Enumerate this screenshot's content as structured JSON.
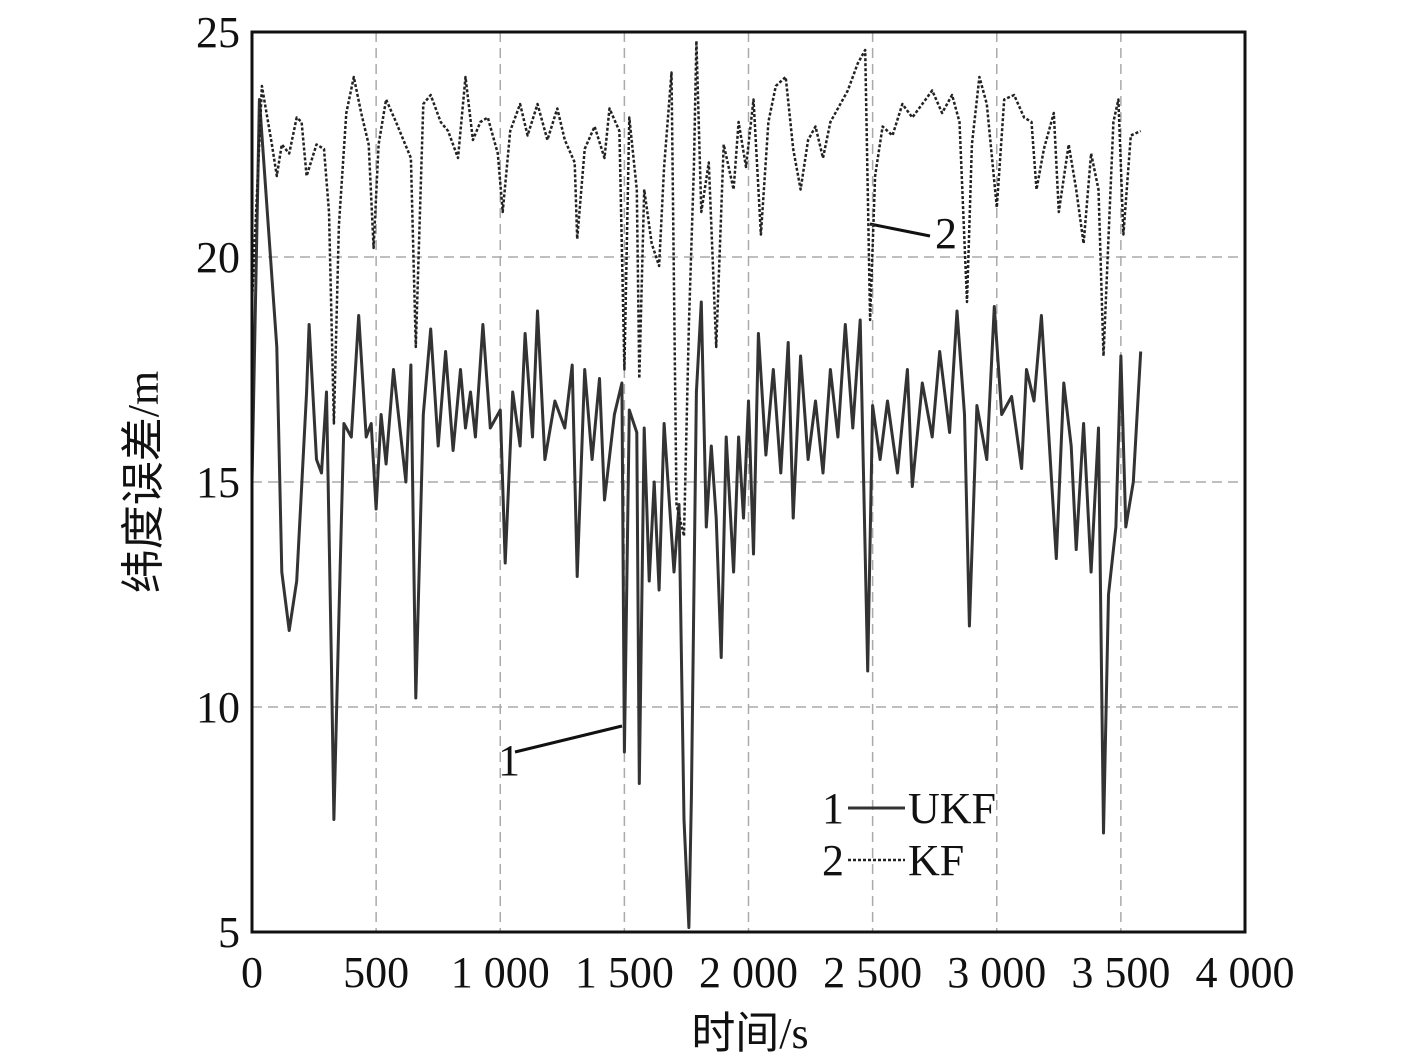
{
  "chart_data": {
    "type": "line",
    "xlabel": "时间/s",
    "ylabel": "纬度误差/m",
    "xlim": [
      0,
      4000
    ],
    "ylim": [
      5,
      25
    ],
    "xticks": [
      0,
      500,
      {
        "value": 1000,
        "label": "1 000"
      },
      {
        "value": 1500,
        "label": "1 500"
      },
      {
        "value": 2000,
        "label": "2 000"
      },
      {
        "value": 2500,
        "label": "2 500"
      },
      {
        "value": 3000,
        "label": "3 000"
      },
      {
        "value": 3500,
        "label": "3 500"
      },
      {
        "value": 4000,
        "label": "4 000"
      }
    ],
    "yticks": [
      5,
      10,
      15,
      20,
      25
    ],
    "grid": true,
    "legend_keys": [
      "1",
      "2"
    ],
    "annotations": [
      "1",
      "2"
    ],
    "series": [
      {
        "name": "UKF",
        "color": "#333333",
        "dash": false,
        "x": [
          0,
          30,
          100,
          120,
          150,
          180,
          220,
          230,
          260,
          280,
          300,
          320,
          330,
          350,
          370,
          400,
          430,
          460,
          480,
          500,
          520,
          540,
          570,
          600,
          620,
          640,
          660,
          690,
          720,
          750,
          780,
          810,
          840,
          860,
          880,
          900,
          930,
          960,
          1000,
          1020,
          1050,
          1080,
          1100,
          1130,
          1150,
          1180,
          1220,
          1260,
          1290,
          1310,
          1340,
          1370,
          1400,
          1420,
          1460,
          1490,
          1500,
          1520,
          1550,
          1560,
          1580,
          1600,
          1620,
          1640,
          1660,
          1700,
          1720,
          1740,
          1760,
          1770,
          1790,
          1810,
          1830,
          1850,
          1870,
          1890,
          1910,
          1940,
          1960,
          1980,
          2000,
          2020,
          2040,
          2070,
          2100,
          2130,
          2160,
          2180,
          2210,
          2240,
          2270,
          2300,
          2330,
          2360,
          2390,
          2420,
          2450,
          2480,
          2500,
          2530,
          2560,
          2600,
          2640,
          2660,
          2700,
          2740,
          2770,
          2810,
          2840,
          2870,
          2890,
          2920,
          2960,
          2990,
          3020,
          3060,
          3100,
          3120,
          3150,
          3180,
          3210,
          3240,
          3270,
          3300,
          3320,
          3350,
          3380,
          3410,
          3430,
          3450,
          3480,
          3500,
          3520,
          3550,
          3580
        ],
        "values": [
          15,
          23.5,
          18,
          13,
          11.7,
          12.8,
          17,
          18.5,
          15.5,
          15.2,
          17,
          11,
          7.5,
          12,
          16.3,
          16,
          18.7,
          16,
          16.3,
          14.4,
          16.5,
          15.4,
          17.5,
          16,
          15,
          17.6,
          10.2,
          16.5,
          18.4,
          15.8,
          17.9,
          15.7,
          17.5,
          16.2,
          17,
          16,
          18.5,
          16.2,
          16.6,
          13.2,
          17,
          15.8,
          18.3,
          16,
          18.8,
          15.5,
          16.8,
          16.2,
          17.6,
          12.9,
          17.5,
          15.5,
          17.3,
          14.6,
          16.5,
          17.2,
          9,
          16.6,
          16.1,
          8.3,
          16.2,
          12.8,
          15,
          12.6,
          16.3,
          13,
          14.5,
          7.5,
          5.1,
          8,
          17,
          19,
          14,
          15.8,
          14.2,
          11.1,
          16,
          13,
          16,
          14.2,
          16.8,
          13.4,
          18.3,
          15.6,
          17.5,
          15.2,
          18.1,
          14.2,
          17.8,
          15.5,
          16.8,
          15.2,
          17.5,
          16,
          18.5,
          16.2,
          18.6,
          10.8,
          16.7,
          15.5,
          16.8,
          15.2,
          17.5,
          14.9,
          17.2,
          16,
          17.9,
          16.1,
          18.8,
          16.5,
          11.8,
          16.7,
          15.5,
          18.9,
          16.5,
          16.9,
          15.3,
          17.5,
          16.8,
          18.7,
          16,
          13.3,
          17.2,
          15.8,
          13.5,
          16.3,
          13,
          16.2,
          7.2,
          12.5,
          14,
          17.8,
          14,
          15,
          17.9
        ]
      },
      {
        "name": "KF",
        "color": "#222222",
        "dash": true,
        "x": [
          0,
          40,
          80,
          100,
          120,
          150,
          180,
          200,
          220,
          260,
          290,
          310,
          330,
          350,
          380,
          410,
          440,
          470,
          490,
          510,
          540,
          580,
          610,
          640,
          660,
          690,
          720,
          760,
          790,
          830,
          860,
          890,
          920,
          950,
          990,
          1010,
          1040,
          1080,
          1110,
          1150,
          1190,
          1230,
          1260,
          1300,
          1310,
          1340,
          1380,
          1420,
          1440,
          1480,
          1500,
          1520,
          1550,
          1560,
          1580,
          1610,
          1640,
          1660,
          1690,
          1710,
          1740,
          1760,
          1780,
          1790,
          1810,
          1840,
          1870,
          1900,
          1940,
          1960,
          1990,
          2020,
          2050,
          2080,
          2110,
          2150,
          2180,
          2210,
          2240,
          2270,
          2300,
          2330,
          2360,
          2400,
          2440,
          2470,
          2490,
          2510,
          2540,
          2580,
          2620,
          2660,
          2700,
          2740,
          2780,
          2820,
          2850,
          2880,
          2900,
          2930,
          2960,
          3000,
          3030,
          3070,
          3110,
          3140,
          3160,
          3190,
          3230,
          3250,
          3290,
          3320,
          3350,
          3380,
          3410,
          3430,
          3470,
          3490,
          3510,
          3540,
          3580
        ],
        "values": [
          19,
          23.8,
          22.5,
          21.8,
          22.5,
          22.3,
          23.1,
          23,
          21.8,
          22.5,
          22.4,
          21,
          16.3,
          20.7,
          23.2,
          24,
          23.2,
          22.5,
          20.2,
          22.5,
          23.5,
          23,
          22.6,
          22.2,
          18,
          23.4,
          23.6,
          23,
          22.8,
          22.2,
          24,
          22.6,
          23,
          23.1,
          22.3,
          21,
          22.8,
          23.4,
          22.7,
          23.4,
          22.6,
          23.3,
          22.6,
          22.1,
          20.4,
          22.4,
          22.9,
          22.2,
          23.3,
          22.8,
          17.5,
          23.1,
          21.5,
          17.3,
          21.5,
          20.3,
          19.8,
          22,
          24.1,
          14.5,
          13.8,
          18.5,
          22,
          24.8,
          21,
          22.1,
          18,
          22.5,
          21.5,
          23,
          22,
          23.5,
          20.5,
          23,
          23.8,
          24,
          22.4,
          21.5,
          22.6,
          22.9,
          22.2,
          23,
          23.3,
          23.7,
          24.3,
          24.6,
          18.6,
          21.8,
          22.9,
          22.7,
          23.4,
          23.1,
          23.4,
          23.7,
          23.2,
          23.6,
          23,
          19,
          22.5,
          24,
          23.4,
          21.1,
          23.5,
          23.6,
          23.1,
          23,
          21.5,
          22.4,
          23.2,
          21,
          22.5,
          21.5,
          20.3,
          22.3,
          21.5,
          17.8,
          23,
          23.5,
          20.5,
          22.7,
          22.8
        ]
      }
    ]
  }
}
